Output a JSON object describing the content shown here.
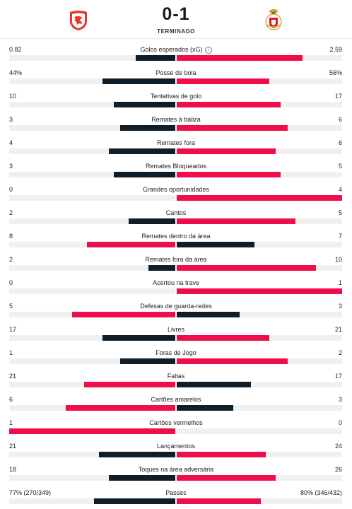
{
  "match": {
    "score": "0-1",
    "status": "TERMINADO",
    "home_logo_icon": "red-eagle-crest-icon",
    "away_logo_icon": "benfica-crest-icon"
  },
  "colors": {
    "home": "#0f1e28",
    "away": "#ef0e49",
    "track": "#f0f0f0"
  },
  "stats": [
    {
      "label": "Golos esperados (xG)",
      "home": "0.82",
      "away": "2.59",
      "home_fill": 0.24,
      "away_fill": 0.76,
      "home_color": "dark",
      "away_color": "red",
      "info": true
    },
    {
      "label": "Posse de bola",
      "home": "44%",
      "away": "56%",
      "home_fill": 0.44,
      "away_fill": 0.56,
      "home_color": "dark",
      "away_color": "red"
    },
    {
      "label": "Tentativas de golo",
      "home": "10",
      "away": "17",
      "home_fill": 0.37,
      "away_fill": 0.63,
      "home_color": "dark",
      "away_color": "red"
    },
    {
      "label": "Remates à baliza",
      "home": "3",
      "away": "6",
      "home_fill": 0.33,
      "away_fill": 0.67,
      "home_color": "dark",
      "away_color": "red"
    },
    {
      "label": "Remates fora",
      "home": "4",
      "away": "6",
      "home_fill": 0.4,
      "away_fill": 0.6,
      "home_color": "dark",
      "away_color": "red"
    },
    {
      "label": "Remates Bloqueados",
      "home": "3",
      "away": "5",
      "home_fill": 0.37,
      "away_fill": 0.63,
      "home_color": "dark",
      "away_color": "red"
    },
    {
      "label": "Grandes oportunidades",
      "home": "0",
      "away": "4",
      "home_fill": 0.0,
      "away_fill": 1.0,
      "home_color": "dark",
      "away_color": "red"
    },
    {
      "label": "Cantos",
      "home": "2",
      "away": "5",
      "home_fill": 0.28,
      "away_fill": 0.72,
      "home_color": "dark",
      "away_color": "red"
    },
    {
      "label": "Remates dentro da área",
      "home": "8",
      "away": "7",
      "home_fill": 0.53,
      "away_fill": 0.47,
      "home_color": "red",
      "away_color": "dark"
    },
    {
      "label": "Remates fora da área",
      "home": "2",
      "away": "10",
      "home_fill": 0.16,
      "away_fill": 0.84,
      "home_color": "dark",
      "away_color": "red"
    },
    {
      "label": "Acertou na trave",
      "home": "0",
      "away": "1",
      "home_fill": 0.0,
      "away_fill": 1.0,
      "home_color": "dark",
      "away_color": "red"
    },
    {
      "label": "Defesas de guarda-redes",
      "home": "5",
      "away": "3",
      "home_fill": 0.62,
      "away_fill": 0.38,
      "home_color": "red",
      "away_color": "dark"
    },
    {
      "label": "Livres",
      "home": "17",
      "away": "21",
      "home_fill": 0.44,
      "away_fill": 0.56,
      "home_color": "dark",
      "away_color": "red"
    },
    {
      "label": "Foras de Jogo",
      "home": "1",
      "away": "2",
      "home_fill": 0.33,
      "away_fill": 0.67,
      "home_color": "dark",
      "away_color": "red"
    },
    {
      "label": "Faltas",
      "home": "21",
      "away": "17",
      "home_fill": 0.55,
      "away_fill": 0.45,
      "home_color": "red",
      "away_color": "dark"
    },
    {
      "label": "Cartões amarelos",
      "home": "6",
      "away": "3",
      "home_fill": 0.66,
      "away_fill": 0.34,
      "home_color": "red",
      "away_color": "dark"
    },
    {
      "label": "Cartões vermelhos",
      "home": "1",
      "away": "0",
      "home_fill": 1.0,
      "away_fill": 0.0,
      "home_color": "red",
      "away_color": "dark"
    },
    {
      "label": "Lançamentos",
      "home": "21",
      "away": "24",
      "home_fill": 0.46,
      "away_fill": 0.54,
      "home_color": "dark",
      "away_color": "red"
    },
    {
      "label": "Toques na área adversária",
      "home": "18",
      "away": "26",
      "home_fill": 0.4,
      "away_fill": 0.6,
      "home_color": "dark",
      "away_color": "red"
    },
    {
      "label": "Passes",
      "home": "77% (270/349)",
      "away": "80% (346/432)",
      "home_fill": 0.49,
      "away_fill": 0.51,
      "home_color": "dark",
      "away_color": "red"
    }
  ]
}
